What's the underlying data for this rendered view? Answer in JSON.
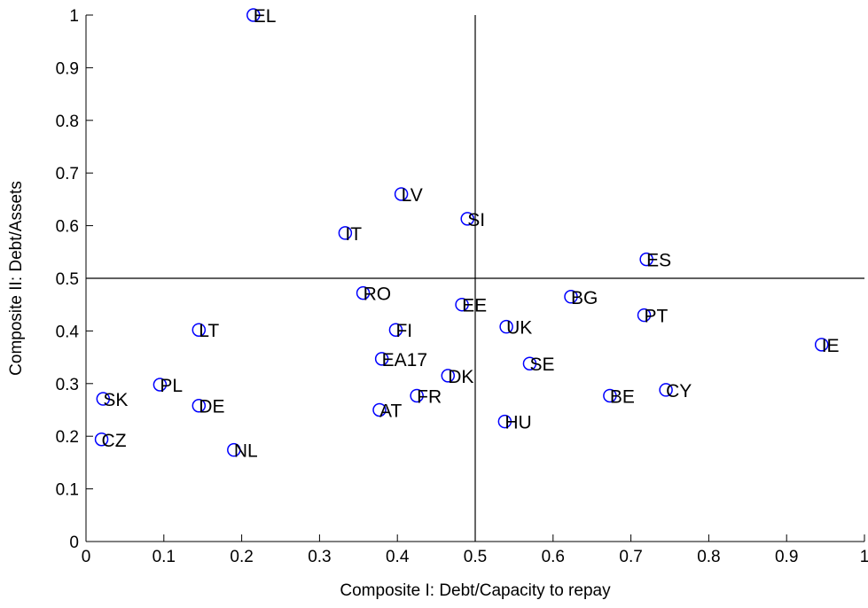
{
  "chart_data": {
    "type": "scatter",
    "xlabel": "Composite I: Debt/Capacity to repay",
    "ylabel": "Composite II: Debt/Assets",
    "xlim": [
      0,
      1
    ],
    "ylim": [
      0,
      1
    ],
    "xticks": [
      "0",
      "0.1",
      "0.2",
      "0.3",
      "0.4",
      "0.5",
      "0.6",
      "0.7",
      "0.8",
      "0.9",
      "1"
    ],
    "yticks": [
      "0",
      "0.1",
      "0.2",
      "0.3",
      "0.4",
      "0.5",
      "0.6",
      "0.7",
      "0.8",
      "0.9",
      "1"
    ],
    "reference_lines": {
      "x": 0.5,
      "y": 0.5
    },
    "marker_color": "#0000ff",
    "grid": false,
    "points": [
      {
        "label": "EL",
        "x": 0.215,
        "y": 1.0
      },
      {
        "label": "LV",
        "x": 0.405,
        "y": 0.66
      },
      {
        "label": "SI",
        "x": 0.49,
        "y": 0.613
      },
      {
        "label": "IT",
        "x": 0.333,
        "y": 0.586
      },
      {
        "label": "ES",
        "x": 0.72,
        "y": 0.536
      },
      {
        "label": "RO",
        "x": 0.356,
        "y": 0.472
      },
      {
        "label": "BG",
        "x": 0.623,
        "y": 0.465
      },
      {
        "label": "EE",
        "x": 0.483,
        "y": 0.45
      },
      {
        "label": "PT",
        "x": 0.717,
        "y": 0.43
      },
      {
        "label": "UK",
        "x": 0.54,
        "y": 0.408
      },
      {
        "label": "LT",
        "x": 0.145,
        "y": 0.402
      },
      {
        "label": "FI",
        "x": 0.398,
        "y": 0.402
      },
      {
        "label": "IE",
        "x": 0.945,
        "y": 0.374
      },
      {
        "label": "EA17",
        "x": 0.38,
        "y": 0.347
      },
      {
        "label": "SE",
        "x": 0.57,
        "y": 0.338
      },
      {
        "label": "DK",
        "x": 0.465,
        "y": 0.315
      },
      {
        "label": "PL",
        "x": 0.095,
        "y": 0.298
      },
      {
        "label": "CY",
        "x": 0.745,
        "y": 0.288
      },
      {
        "label": "FR",
        "x": 0.425,
        "y": 0.277
      },
      {
        "label": "BE",
        "x": 0.673,
        "y": 0.277
      },
      {
        "label": "SK",
        "x": 0.022,
        "y": 0.271
      },
      {
        "label": "DE",
        "x": 0.145,
        "y": 0.258
      },
      {
        "label": "AT",
        "x": 0.377,
        "y": 0.25
      },
      {
        "label": "HU",
        "x": 0.538,
        "y": 0.228
      },
      {
        "label": "CZ",
        "x": 0.02,
        "y": 0.194
      },
      {
        "label": "NL",
        "x": 0.19,
        "y": 0.174
      }
    ]
  }
}
